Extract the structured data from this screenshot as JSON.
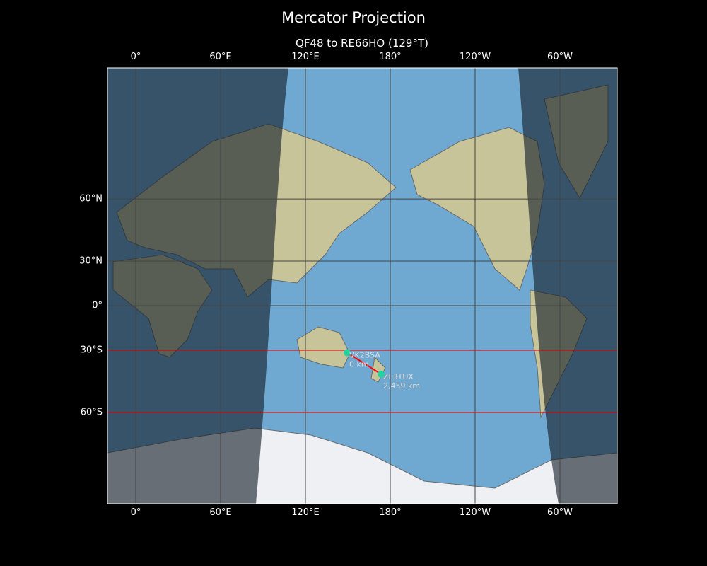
{
  "title": "Mercator Projection",
  "subtitle": "QF48 to RE66HO (129°T)",
  "x_ticks": [
    "0°",
    "60°E",
    "120°E",
    "180°",
    "120°W",
    "60°W"
  ],
  "x_tick_lons": [
    0,
    60,
    120,
    180,
    240,
    300
  ],
  "y_ticks": [
    "60°N",
    "30°N",
    "0°",
    "30°S",
    "60°S"
  ],
  "y_tick_lats": [
    60,
    30,
    0,
    -30,
    -60
  ],
  "extent": {
    "lon": [
      -20,
      340
    ],
    "lat": [
      -80,
      84
    ]
  },
  "highlight_latitudes": [
    -30,
    -60
  ],
  "colors": {
    "ocean": "#6fa9d2",
    "land": "#c9c9a0",
    "night": "rgba(20,30,40,0.62)",
    "path": "#ff0000",
    "marker": "#22d3a0",
    "grid": "#444444",
    "highlight": "#cc0000"
  },
  "stations": [
    {
      "call": "VK2BSA",
      "distance": "0 km",
      "lat": -31.5,
      "lon": 149.5
    },
    {
      "call": "ZL3TUX",
      "distance": "2,459 km",
      "lat": -43.5,
      "lon": 173.5
    }
  ]
}
